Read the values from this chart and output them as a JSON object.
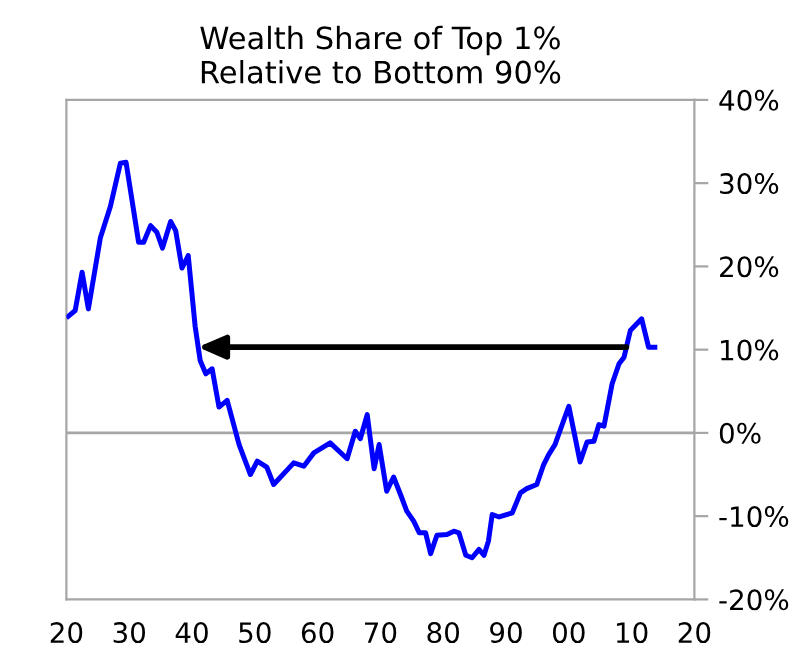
{
  "chart_data": {
    "type": "line",
    "title": "Wealth Share of Top 1%\nRelative to Bottom 90%",
    "x": [
      1920.3,
      1921.4,
      1922.5,
      1923.5,
      1925.4,
      1927,
      1928.6,
      1929.5,
      1931.5,
      1932.3,
      1933.4,
      1934.4,
      1935.3,
      1936.6,
      1937.4,
      1938.4,
      1939.4,
      1940.5,
      1941.3,
      1942.2,
      1943.2,
      1944.3,
      1945.6,
      1947.5,
      1949.3,
      1950.4,
      1951.9,
      1953,
      1956.2,
      1957.8,
      1959.4,
      1962,
      1964.7,
      1966,
      1966.8,
      1967.9,
      1969,
      1969.8,
      1971,
      1972.1,
      1973.2,
      1974.2,
      1975.3,
      1976.2,
      1977.2,
      1978,
      1979,
      1980.6,
      1981.7,
      1982.5,
      1983.6,
      1984.6,
      1985.7,
      1986.5,
      1987.2,
      1987.8,
      1988.9,
      1991,
      1992.3,
      1993.3,
      1994.9,
      1996,
      1996.8,
      1997.8,
      2000,
      2001.8,
      2002.9,
      2004,
      2004.8,
      2005.6,
      2006.9,
      2008,
      2008.8,
      2009.8,
      2011.6,
      2012.7,
      2013.7
    ],
    "series": [
      {
        "color": "#0000ff",
        "values": [
          14.0,
          14.7,
          19.3,
          14.9,
          23.4,
          27.2,
          32.4,
          32.5,
          22.9,
          22.9,
          24.9,
          24.1,
          22.2,
          25.4,
          24.3,
          19.8,
          21.3,
          12.8,
          8.7,
          7.1,
          7.7,
          3.1,
          3.9,
          -1.4,
          -5.0,
          -3.4,
          -4.1,
          -6.2,
          -3.6,
          -4.0,
          -2.4,
          -1.2,
          -3.1,
          0.2,
          -0.7,
          2.2,
          -4.3,
          -1.4,
          -7.0,
          -5.3,
          -7.4,
          -9.4,
          -10.6,
          -12.0,
          -12.0,
          -14.5,
          -12.3,
          -12.2,
          -11.8,
          -12.0,
          -14.7,
          -15.0,
          -14.0,
          -14.7,
          -13.0,
          -9.8,
          -10.1,
          -9.6,
          -7.2,
          -6.7,
          -6.2,
          -3.8,
          -2.6,
          -1.4,
          3.2,
          -3.5,
          -1.1,
          -1.0,
          1.0,
          0.8,
          5.9,
          8.3,
          9.1,
          12.3,
          13.7,
          10.3,
          10.3
        ]
      }
    ],
    "xlim": [
      1920,
      2020
    ],
    "xticks": [
      {
        "value": 1920,
        "label": "20"
      },
      {
        "value": 1930,
        "label": "30"
      },
      {
        "value": 1940,
        "label": "40"
      },
      {
        "value": 1950,
        "label": "50"
      },
      {
        "value": 1960,
        "label": "60"
      },
      {
        "value": 1970,
        "label": "70"
      },
      {
        "value": 1980,
        "label": "80"
      },
      {
        "value": 1990,
        "label": "90"
      },
      {
        "value": 2000,
        "label": "00"
      },
      {
        "value": 2010,
        "label": "10"
      },
      {
        "value": 2020,
        "label": "20"
      }
    ],
    "ylim": [
      -20,
      40
    ],
    "yticks": [
      {
        "value": -20,
        "label": "-20%"
      },
      {
        "value": -10,
        "label": "-10%"
      },
      {
        "value": 0,
        "label": "0%"
      },
      {
        "value": 10,
        "label": "10%"
      },
      {
        "value": 20,
        "label": "20%"
      },
      {
        "value": 30,
        "label": "30%"
      },
      {
        "value": 40,
        "label": "40%"
      }
    ],
    "ref_lines": [
      {
        "axis": "y",
        "value": 0,
        "color": "#a6a6a6"
      }
    ],
    "grid": false
  }
}
